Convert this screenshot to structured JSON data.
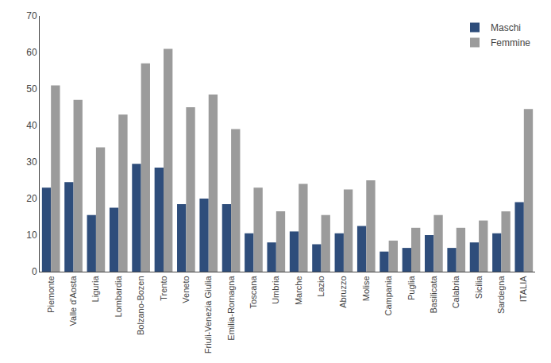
{
  "chart_data": {
    "type": "bar",
    "categories": [
      "Piemonte",
      "Valle d'Aosta",
      "Liguria",
      "Lombardia",
      "Bolzano-Bozen",
      "Trento",
      "Veneto",
      "Friuli-Venezia Giulia",
      "Emilia-Romagna",
      "Toscana",
      "Umbria",
      "Marche",
      "Lazio",
      "Abruzzo",
      "Molise",
      "Campania",
      "Puglia",
      "Basilicata",
      "Calabria",
      "Sicilia",
      "Sardegna",
      "ITALIA"
    ],
    "series": [
      {
        "name": "Maschi",
        "color": "#2E4D7B",
        "values": [
          23,
          24.5,
          15.5,
          17.5,
          29.5,
          28.5,
          18.5,
          20,
          18.5,
          10.5,
          8,
          11,
          7.5,
          10.5,
          12.5,
          5.5,
          6.5,
          10,
          6.5,
          8,
          10.5,
          19
        ]
      },
      {
        "name": "Femmine",
        "color": "#9B9B9B",
        "values": [
          51,
          47,
          34,
          43,
          57,
          61,
          45,
          48.5,
          39,
          23,
          16.5,
          24,
          15.5,
          22.5,
          25,
          8.5,
          12,
          15.5,
          12,
          14,
          16.5,
          44.5
        ]
      }
    ],
    "ylim": [
      0,
      70
    ],
    "yticks": [
      0,
      10,
      20,
      30,
      40,
      50,
      60,
      70
    ],
    "grid": false,
    "legend": "upper right"
  }
}
